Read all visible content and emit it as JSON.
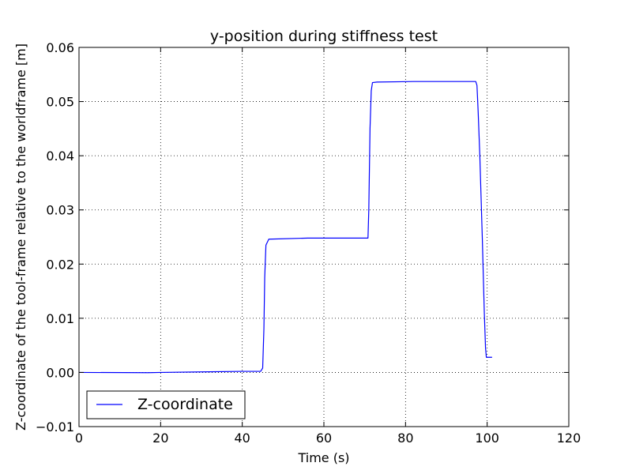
{
  "chart_data": {
    "type": "line",
    "title": "y-position during stiffness test",
    "xlabel": "Time (s)",
    "ylabel": "Z-coordinate of the tool-frame relative to the worldframe [m]",
    "xlim": [
      0,
      120
    ],
    "ylim": [
      -0.01,
      0.06
    ],
    "xticks": [
      0,
      20,
      40,
      60,
      80,
      100,
      120
    ],
    "yticks": [
      -0.01,
      0.0,
      0.01,
      0.02,
      0.03,
      0.04,
      0.05,
      0.06
    ],
    "xtick_labels": [
      "0",
      "20",
      "40",
      "60",
      "80",
      "100",
      "120"
    ],
    "ytick_labels": [
      "−0.01",
      "0.00",
      "0.01",
      "0.02",
      "0.03",
      "0.04",
      "0.05",
      "0.06"
    ],
    "grid": true,
    "legend_position": "lower-left",
    "colors": {
      "series": "#0000ff",
      "axes": "#000000",
      "grid": "#000000"
    },
    "series": [
      {
        "name": "Z-coordinate",
        "x": [
          0,
          17,
          20,
          30,
          40,
          44.5,
          45.0,
          45.3,
          45.5,
          45.8,
          46.5,
          56,
          66,
          70.8,
          71.0,
          71.3,
          71.6,
          71.9,
          73,
          82,
          90,
          97.2,
          97.5,
          97.8,
          98.2,
          98.8,
          99.3,
          99.6,
          99.8,
          100.2,
          101.2
        ],
        "y": [
          0.0,
          -5e-05,
          0.0,
          0.0001,
          0.0002,
          0.0002,
          0.0008,
          0.008,
          0.0175,
          0.0235,
          0.0246,
          0.0248,
          0.0248,
          0.0248,
          0.03,
          0.045,
          0.052,
          0.0535,
          0.0536,
          0.0537,
          0.0537,
          0.0537,
          0.053,
          0.048,
          0.04,
          0.025,
          0.011,
          0.0045,
          0.0028,
          0.0028,
          0.0028
        ]
      }
    ]
  }
}
